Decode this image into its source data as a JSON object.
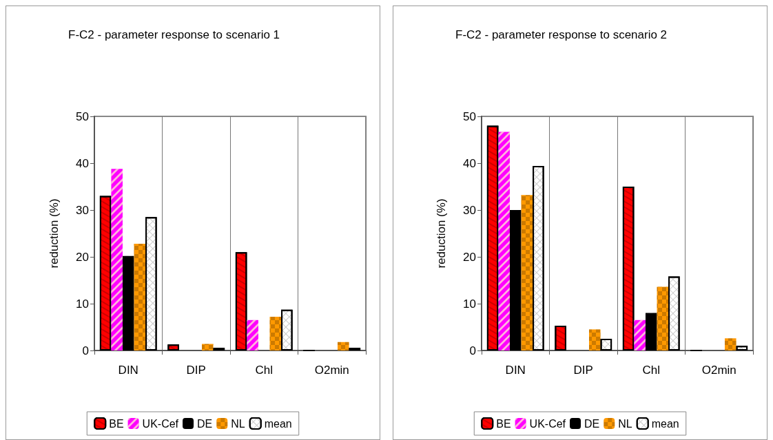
{
  "chart_data": [
    {
      "type": "bar",
      "title": "F-C2 - parameter response to scenario 1",
      "ylabel": "reduction (%)",
      "categories": [
        "DIN",
        "DIP",
        "Chl",
        "O2min"
      ],
      "series": [
        {
          "name": "BE",
          "color": "#ff0000",
          "values": [
            33,
            1.3,
            21,
            0
          ]
        },
        {
          "name": "UK-Cef",
          "color": "#ff00ff",
          "values": [
            38.8,
            0,
            6.5,
            0
          ]
        },
        {
          "name": "DE",
          "color": "#000000",
          "values": [
            20.2,
            0,
            0,
            0
          ]
        },
        {
          "name": "NL",
          "color": "#ff9900",
          "values": [
            22.8,
            1.4,
            7.2,
            1.8
          ]
        },
        {
          "name": "mean",
          "color": "#ffffff",
          "values": [
            28.5,
            0.6,
            8.7,
            0.6
          ]
        }
      ],
      "ylim": [
        0,
        50
      ],
      "yticks": [
        0,
        10,
        20,
        30,
        40,
        50
      ],
      "grid": "x",
      "legend": "bottom"
    },
    {
      "type": "bar",
      "title": "F-C2 - parameter response to scenario 2",
      "ylabel": "reduction (%)",
      "categories": [
        "DIN",
        "DIP",
        "Chl",
        "O2min"
      ],
      "series": [
        {
          "name": "BE",
          "color": "#ff0000",
          "values": [
            48,
            5.3,
            35,
            0
          ]
        },
        {
          "name": "UK-Cef",
          "color": "#ff00ff",
          "values": [
            46.7,
            0,
            6.5,
            0
          ]
        },
        {
          "name": "DE",
          "color": "#000000",
          "values": [
            30,
            0,
            8,
            0
          ]
        },
        {
          "name": "NL",
          "color": "#ff9900",
          "values": [
            33.2,
            4.5,
            13.6,
            2.6
          ]
        },
        {
          "name": "mean",
          "color": "#ffffff",
          "values": [
            39.4,
            2.5,
            15.8,
            1.0
          ]
        }
      ],
      "ylim": [
        0,
        50
      ],
      "yticks": [
        0,
        10,
        20,
        30,
        40,
        50
      ],
      "grid": "x",
      "legend": "bottom"
    }
  ]
}
